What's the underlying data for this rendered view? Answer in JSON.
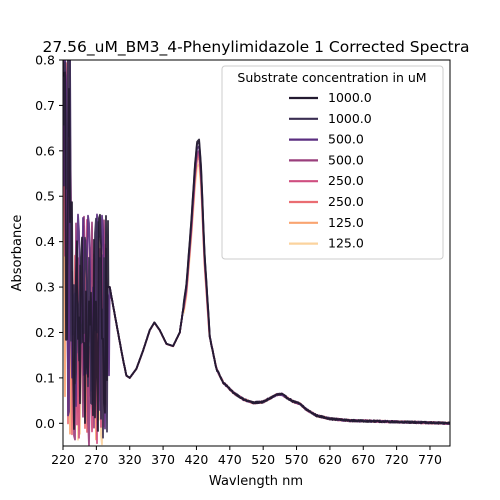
{
  "chart_data": {
    "type": "line",
    "title": "27.56_uM_BM3_4-Phenylimidazole 1 Corrected Spectra",
    "xlabel": "Wavlength nm",
    "ylabel": "Absorbance",
    "xlim": [
      220,
      800
    ],
    "ylim": [
      -0.05,
      0.8
    ],
    "xticks": [
      "220",
      "270",
      "320",
      "370",
      "420",
      "470",
      "520",
      "570",
      "620",
      "670",
      "720",
      "770"
    ],
    "yticks": [
      "0.0",
      "0.1",
      "0.2",
      "0.3",
      "0.4",
      "0.5",
      "0.6",
      "0.7",
      "0.8"
    ],
    "grid": false,
    "legend": {
      "title": "Substrate concentration in uM",
      "position": "top-right"
    },
    "common_profile": {
      "x": [
        290,
        300,
        310,
        315,
        320,
        330,
        340,
        350,
        357,
        365,
        375,
        385,
        395,
        405,
        412,
        418,
        421,
        424,
        427,
        432,
        440,
        450,
        460,
        475,
        490,
        505,
        520,
        530,
        540,
        548,
        555,
        565,
        575,
        585,
        600,
        620,
        650,
        700,
        750,
        800
      ],
      "y": [
        0.3,
        0.22,
        0.14,
        0.105,
        0.1,
        0.12,
        0.16,
        0.205,
        0.222,
        0.205,
        0.175,
        0.17,
        0.2,
        0.3,
        0.43,
        0.56,
        0.605,
        0.61,
        0.55,
        0.37,
        0.19,
        0.12,
        0.09,
        0.068,
        0.053,
        0.045,
        0.047,
        0.055,
        0.063,
        0.064,
        0.057,
        0.048,
        0.043,
        0.03,
        0.017,
        0.01,
        0.006,
        0.004,
        0.002,
        0.0
      ]
    },
    "series": [
      {
        "name": "1000.0",
        "color": "#231a30",
        "peak_absorbance": 0.625,
        "noise_end_nm": 288
      },
      {
        "name": "1000.0",
        "color": "#3b2f52",
        "peak_absorbance": 0.62,
        "noise_end_nm": 287
      },
      {
        "name": "500.0",
        "color": "#5b2f80",
        "peak_absorbance": 0.61,
        "noise_end_nm": 290
      },
      {
        "name": "500.0",
        "color": "#9a3f7c",
        "peak_absorbance": 0.6,
        "noise_end_nm": 286
      },
      {
        "name": "250.0",
        "color": "#cf4f80",
        "peak_absorbance": 0.595,
        "noise_end_nm": 285
      },
      {
        "name": "250.0",
        "color": "#ea6d72",
        "peak_absorbance": 0.59,
        "noise_end_nm": 284
      },
      {
        "name": "125.0",
        "color": "#f9a471",
        "peak_absorbance": 0.585,
        "noise_end_nm": 286
      },
      {
        "name": "125.0",
        "color": "#fbd39e",
        "peak_absorbance": 0.57,
        "noise_end_nm": 283
      }
    ]
  }
}
